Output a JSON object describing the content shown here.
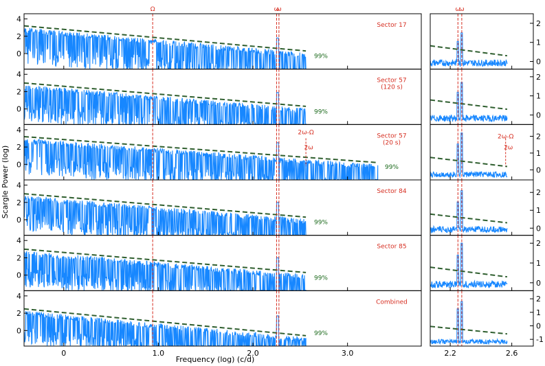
{
  "figure": {
    "ylabel": "Scargle Power (log)",
    "xlabel": "Frequency (log) (c/d)"
  },
  "colors": {
    "series": "#1787ff",
    "threshold": "#2e5e2e",
    "marker": "#d62d20",
    "threshold_label": "#1e6b1e"
  },
  "chart_data": {
    "type": "line",
    "main_x_ticks": [
      "0",
      "1.0",
      "2.0",
      "3.0"
    ],
    "main_x_tick_values": [
      0,
      1,
      2,
      3
    ],
    "main_xlim": [
      -0.42,
      3.78
    ],
    "zoom_x_ticks": [
      "2.2",
      "2.6"
    ],
    "zoom_x_tick_values": [
      2.2,
      2.6
    ],
    "zoom_xlim": [
      2.07,
      2.74
    ],
    "markers": [
      {
        "label": "Ω",
        "x": 0.94
      },
      {
        "label": "ω",
        "x": 2.25
      },
      {
        "label": "ω",
        "x": 2.275
      },
      {
        "label": "2ω-Ω",
        "x": 2.56
      },
      {
        "label": "2ω",
        "x": 2.57
      }
    ],
    "panels": [
      {
        "label": "Sector 17",
        "xmax": 2.56,
        "main_ylim": [
          -1.8,
          4.6
        ],
        "main_y_ticks": [
          "0",
          "2",
          "4"
        ],
        "main_y_values": [
          0,
          2,
          4
        ],
        "zoom_ylim": [
          -0.4,
          2.5
        ],
        "zoom_y_ticks": [
          "0",
          "1",
          "2"
        ],
        "zoom_y_values": [
          0,
          1,
          2
        ],
        "threshold_label": "99%",
        "threshold_start": 3.2,
        "threshold_end": 0.3,
        "peak_main": 1.8,
        "peak_zoom": 1.5,
        "marker_labels": [
          "Ω",
          "ω",
          "ω"
        ]
      },
      {
        "label": "Sector 57\n(120 s)",
        "xmax": 2.56,
        "main_ylim": [
          -1.8,
          4.6
        ],
        "main_y_ticks": [
          "0",
          "2",
          "4"
        ],
        "main_y_values": [
          0,
          2,
          4
        ],
        "zoom_ylim": [
          -0.5,
          2.4
        ],
        "zoom_y_ticks": [
          "0",
          "1",
          "2"
        ],
        "zoom_y_values": [
          0,
          1,
          2
        ],
        "threshold_label": "99%",
        "threshold_start": 3.0,
        "threshold_end": 0.3,
        "peak_main": 1.9,
        "peak_zoom": 1.7,
        "marker_labels": []
      },
      {
        "label": "Sector 57\n(20 s)",
        "xmax": 3.32,
        "main_ylim": [
          -1.8,
          4.6
        ],
        "main_y_ticks": [
          "0",
          "2",
          "4"
        ],
        "main_y_values": [
          0,
          2,
          4
        ],
        "zoom_ylim": [
          -0.6,
          2.7
        ],
        "zoom_y_ticks": [
          "0",
          "1",
          "2"
        ],
        "zoom_y_values": [
          0,
          1,
          2
        ],
        "threshold_label": "99%",
        "threshold_start": 3.2,
        "threshold_end": 0.2,
        "peak_main": 2.5,
        "peak_zoom": 2.2,
        "marker_labels": [
          "2ω-Ω",
          "2ω"
        ]
      },
      {
        "label": "Sector 84",
        "xmax": 2.56,
        "main_ylim": [
          -1.8,
          4.6
        ],
        "main_y_ticks": [
          "0",
          "2",
          "4"
        ],
        "main_y_values": [
          0,
          2,
          4
        ],
        "zoom_ylim": [
          -0.4,
          2.7
        ],
        "zoom_y_ticks": [
          "0",
          "1",
          "2"
        ],
        "zoom_y_values": [
          0,
          1,
          2
        ],
        "threshold_label": "99%",
        "threshold_start": 3.0,
        "threshold_end": 0.3,
        "peak_main": 2.0,
        "peak_zoom": 2.1,
        "marker_labels": []
      },
      {
        "label": "Sector 85",
        "xmax": 2.56,
        "main_ylim": [
          -1.8,
          4.6
        ],
        "main_y_ticks": [
          "0",
          "2",
          "4"
        ],
        "main_y_values": [
          0,
          2,
          4
        ],
        "zoom_ylim": [
          -0.4,
          2.4
        ],
        "zoom_y_ticks": [
          "0",
          "1",
          "2"
        ],
        "zoom_y_values": [
          0,
          1,
          2
        ],
        "threshold_label": "99%",
        "threshold_start": 3.0,
        "threshold_end": 0.3,
        "peak_main": 2.0,
        "peak_zoom": 2.0,
        "marker_labels": []
      },
      {
        "label": "Combined",
        "xmax": 2.56,
        "main_ylim": [
          -1.8,
          4.6
        ],
        "main_y_ticks": [
          "0",
          "2",
          "4"
        ],
        "main_y_values": [
          0,
          2,
          4
        ],
        "zoom_ylim": [
          -1.5,
          2.6
        ],
        "zoom_y_ticks": [
          "-1",
          "0",
          "1",
          "2"
        ],
        "zoom_y_values": [
          -1,
          0,
          1,
          2
        ],
        "threshold_label": "99%",
        "threshold_start": 2.5,
        "threshold_end": -0.6,
        "peak_main": 1.7,
        "peak_zoom": 1.8,
        "marker_labels": []
      }
    ]
  }
}
